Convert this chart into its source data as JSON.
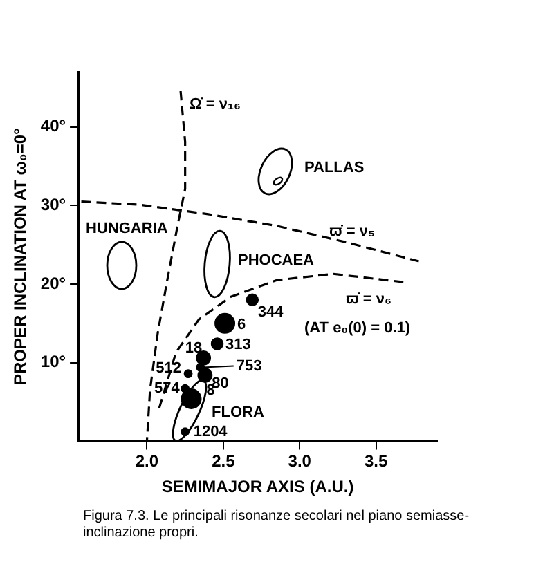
{
  "chart_data": {
    "type": "scatter",
    "xlabel": "SEMIMAJOR AXIS (A.U.)",
    "ylabel": "PROPER INCLINATION AT ω₀=0°",
    "xlim": [
      1.55,
      3.9
    ],
    "ylim": [
      0,
      47
    ],
    "xticks": [
      {
        "value": 2,
        "label": "2.0"
      },
      {
        "value": 2.5,
        "label": "2.5"
      },
      {
        "value": 3,
        "label": "3.0"
      },
      {
        "value": 3.5,
        "label": "3.5"
      }
    ],
    "yticks": [
      {
        "value": 10,
        "label": "10°"
      },
      {
        "value": 20,
        "label": "20°"
      },
      {
        "value": 30,
        "label": "30°"
      },
      {
        "value": 40,
        "label": "40°"
      }
    ],
    "grid": false,
    "legend": false,
    "series": [
      {
        "type": "line",
        "color": "#000000",
        "line_style": "dashed",
        "marker": "none",
        "x": [
          2.22,
          2.25,
          2.25,
          2.2,
          2.13,
          2.07,
          2.02,
          2.0
        ],
        "values": [
          44.6,
          38.1,
          32.1,
          27.4,
          20.2,
          13.7,
          6.5,
          0.1
        ]
      },
      {
        "type": "line",
        "color": "#000000",
        "line_style": "dashed",
        "marker": "none",
        "x": [
          1.57,
          1.95,
          2.4,
          2.85,
          3.31,
          3.78
        ],
        "values": [
          30.5,
          30.1,
          28.9,
          27.4,
          25.3,
          22.9
        ]
      },
      {
        "type": "line",
        "color": "#000000",
        "line_style": "dashed",
        "marker": "none",
        "x": [
          2.08,
          2.19,
          2.34,
          2.55,
          2.85,
          3.22,
          3.7
        ],
        "values": [
          4.2,
          11.3,
          15.5,
          18.4,
          20.5,
          21.3,
          20.2
        ]
      },
      {
        "type": "bubble",
        "color": "#000000",
        "x": [
          2.69,
          2.51,
          2.46,
          2.37,
          2.35,
          2.38,
          2.27,
          2.25,
          2.29,
          2.25
        ],
        "values": [
          18.0,
          15.0,
          12.4,
          10.6,
          9.4,
          8.4,
          8.6,
          6.7,
          5.4,
          1.2
        ],
        "sizes": [
          0.35,
          1,
          0.35,
          0.5,
          0.15,
          0.5,
          0.15,
          0.15,
          1,
          0.15
        ]
      }
    ],
    "annotations": [
      {
        "text": "344",
        "x": 2.69,
        "y": 18.0
      },
      {
        "text": "6",
        "x": 2.51,
        "y": 15.0
      },
      {
        "text": "313",
        "x": 2.46,
        "y": 12.4
      },
      {
        "text": "18",
        "x": 2.37,
        "y": 10.6
      },
      {
        "text": "753",
        "x": 2.35,
        "y": 9.4
      },
      {
        "text": "80",
        "x": 2.38,
        "y": 8.4
      },
      {
        "text": "512",
        "x": 2.27,
        "y": 8.6
      },
      {
        "text": "574",
        "x": 2.25,
        "y": 6.7
      },
      {
        "text": "8",
        "x": 2.29,
        "y": 5.4
      },
      {
        "text": "1204",
        "x": 2.25,
        "y": 1.2
      },
      "PALLAS",
      "HUNGARIA",
      "PHOCAEA",
      "FLORA",
      "Ω̇ = ν₁₆",
      "ϖ̇ = ν₅",
      "ϖ̇ = ν₆",
      "(AT e₀(0) = 0.1)",
      "Figura 7.3. Le principali risonanze secolari nel piano semiasse-inclinazione propri."
    ]
  }
}
